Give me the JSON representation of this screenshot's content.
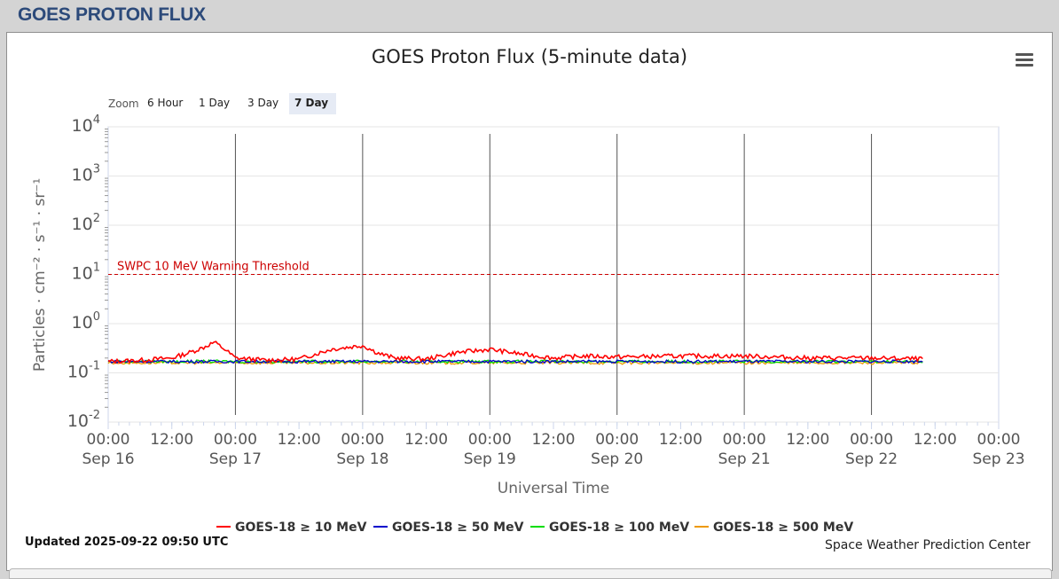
{
  "page": {
    "title": "GOES PROTON FLUX",
    "updated": "Updated 2025-09-22 09:50 UTC",
    "credit": "Space Weather Prediction Center"
  },
  "zoom": {
    "label": "Zoom",
    "buttons": [
      "6 Hour",
      "1 Day",
      "3 Day",
      "7 Day"
    ],
    "active": "7 Day"
  },
  "chart_data": {
    "type": "line",
    "title": "GOES Proton Flux (5-minute data)",
    "xlabel": "Universal Time",
    "ylabel": "Particles · cm⁻² · s⁻¹ · sr⁻¹",
    "yscale": "log",
    "ylim": [
      0.01,
      10000
    ],
    "xlim": [
      "2025-09-16 00:00",
      "2025-09-23 00:00"
    ],
    "y_ticks": [
      {
        "value": 0.01,
        "base": "10",
        "exp": "-2"
      },
      {
        "value": 0.1,
        "base": "10",
        "exp": "-1"
      },
      {
        "value": 1,
        "base": "10",
        "exp": "0"
      },
      {
        "value": 10,
        "base": "10",
        "exp": "1"
      },
      {
        "value": 100,
        "base": "10",
        "exp": "2"
      },
      {
        "value": 1000,
        "base": "10",
        "exp": "3"
      },
      {
        "value": 10000,
        "base": "10",
        "exp": "4"
      }
    ],
    "x_ticks": [
      {
        "time": "2025-09-16 00:00",
        "label": "00:00",
        "date": "Sep 16"
      },
      {
        "time": "2025-09-16 12:00",
        "label": "12:00",
        "date": ""
      },
      {
        "time": "2025-09-17 00:00",
        "label": "00:00",
        "date": "Sep 17"
      },
      {
        "time": "2025-09-17 12:00",
        "label": "12:00",
        "date": ""
      },
      {
        "time": "2025-09-18 00:00",
        "label": "00:00",
        "date": "Sep 18"
      },
      {
        "time": "2025-09-18 12:00",
        "label": "12:00",
        "date": ""
      },
      {
        "time": "2025-09-19 00:00",
        "label": "00:00",
        "date": "Sep 19"
      },
      {
        "time": "2025-09-19 12:00",
        "label": "12:00",
        "date": ""
      },
      {
        "time": "2025-09-20 00:00",
        "label": "00:00",
        "date": "Sep 20"
      },
      {
        "time": "2025-09-20 12:00",
        "label": "12:00",
        "date": ""
      },
      {
        "time": "2025-09-21 00:00",
        "label": "00:00",
        "date": "Sep 21"
      },
      {
        "time": "2025-09-21 12:00",
        "label": "12:00",
        "date": ""
      },
      {
        "time": "2025-09-22 00:00",
        "label": "00:00",
        "date": "Sep 22"
      },
      {
        "time": "2025-09-22 12:00",
        "label": "12:00",
        "date": ""
      },
      {
        "time": "2025-09-23 00:00",
        "label": "00:00",
        "date": "Sep 23"
      }
    ],
    "day_lines": [
      "2025-09-17 00:00",
      "2025-09-18 00:00",
      "2025-09-19 00:00",
      "2025-09-20 00:00",
      "2025-09-21 00:00",
      "2025-09-22 00:00"
    ],
    "threshold": {
      "value": 10,
      "label": "SWPC 10 MeV Warning Threshold",
      "color": "#cc0000"
    },
    "grid": true,
    "legend_position": "bottom",
    "series": [
      {
        "name": "GOES-18 ≥ 10 MeV",
        "color": "#ff0000",
        "x": [
          "2025-09-16 00:00",
          "2025-09-16 06:00",
          "2025-09-16 12:00",
          "2025-09-16 15:00",
          "2025-09-16 18:00",
          "2025-09-16 20:00",
          "2025-09-16 22:00",
          "2025-09-17 00:00",
          "2025-09-17 06:00",
          "2025-09-17 12:00",
          "2025-09-17 18:00",
          "2025-09-18 00:00",
          "2025-09-18 03:00",
          "2025-09-18 06:00",
          "2025-09-18 12:00",
          "2025-09-18 18:00",
          "2025-09-19 00:00",
          "2025-09-19 06:00",
          "2025-09-19 12:00",
          "2025-09-19 18:00",
          "2025-09-20 00:00",
          "2025-09-20 12:00",
          "2025-09-21 00:00",
          "2025-09-21 12:00",
          "2025-09-22 00:00",
          "2025-09-22 09:50"
        ],
        "y": [
          0.17,
          0.18,
          0.2,
          0.25,
          0.33,
          0.42,
          0.3,
          0.2,
          0.18,
          0.19,
          0.3,
          0.36,
          0.25,
          0.2,
          0.19,
          0.26,
          0.3,
          0.24,
          0.2,
          0.22,
          0.21,
          0.22,
          0.22,
          0.2,
          0.2,
          0.19
        ]
      },
      {
        "name": "GOES-18 ≥ 50 MeV",
        "color": "#0000cc",
        "x": [
          "2025-09-16 00:00",
          "2025-09-17 00:00",
          "2025-09-18 00:00",
          "2025-09-19 00:00",
          "2025-09-20 00:00",
          "2025-09-21 00:00",
          "2025-09-22 00:00",
          "2025-09-22 09:50"
        ],
        "y": [
          0.17,
          0.17,
          0.17,
          0.17,
          0.17,
          0.17,
          0.17,
          0.17
        ]
      },
      {
        "name": "GOES-18 ≥ 100 MeV",
        "color": "#00dd00",
        "x": [
          "2025-09-16 00:00",
          "2025-09-17 00:00",
          "2025-09-18 00:00",
          "2025-09-19 00:00",
          "2025-09-20 00:00",
          "2025-09-21 00:00",
          "2025-09-22 00:00",
          "2025-09-22 09:50"
        ],
        "y": [
          0.17,
          0.17,
          0.17,
          0.17,
          0.17,
          0.17,
          0.17,
          0.17
        ]
      },
      {
        "name": "GOES-18 ≥ 500 MeV",
        "color": "#ee9900",
        "x": [
          "2025-09-16 00:00",
          "2025-09-17 00:00",
          "2025-09-18 00:00",
          "2025-09-19 00:00",
          "2025-09-20 00:00",
          "2025-09-21 00:00",
          "2025-09-22 00:00",
          "2025-09-22 09:50"
        ],
        "y": [
          0.16,
          0.16,
          0.16,
          0.16,
          0.16,
          0.16,
          0.16,
          0.16
        ]
      }
    ]
  }
}
